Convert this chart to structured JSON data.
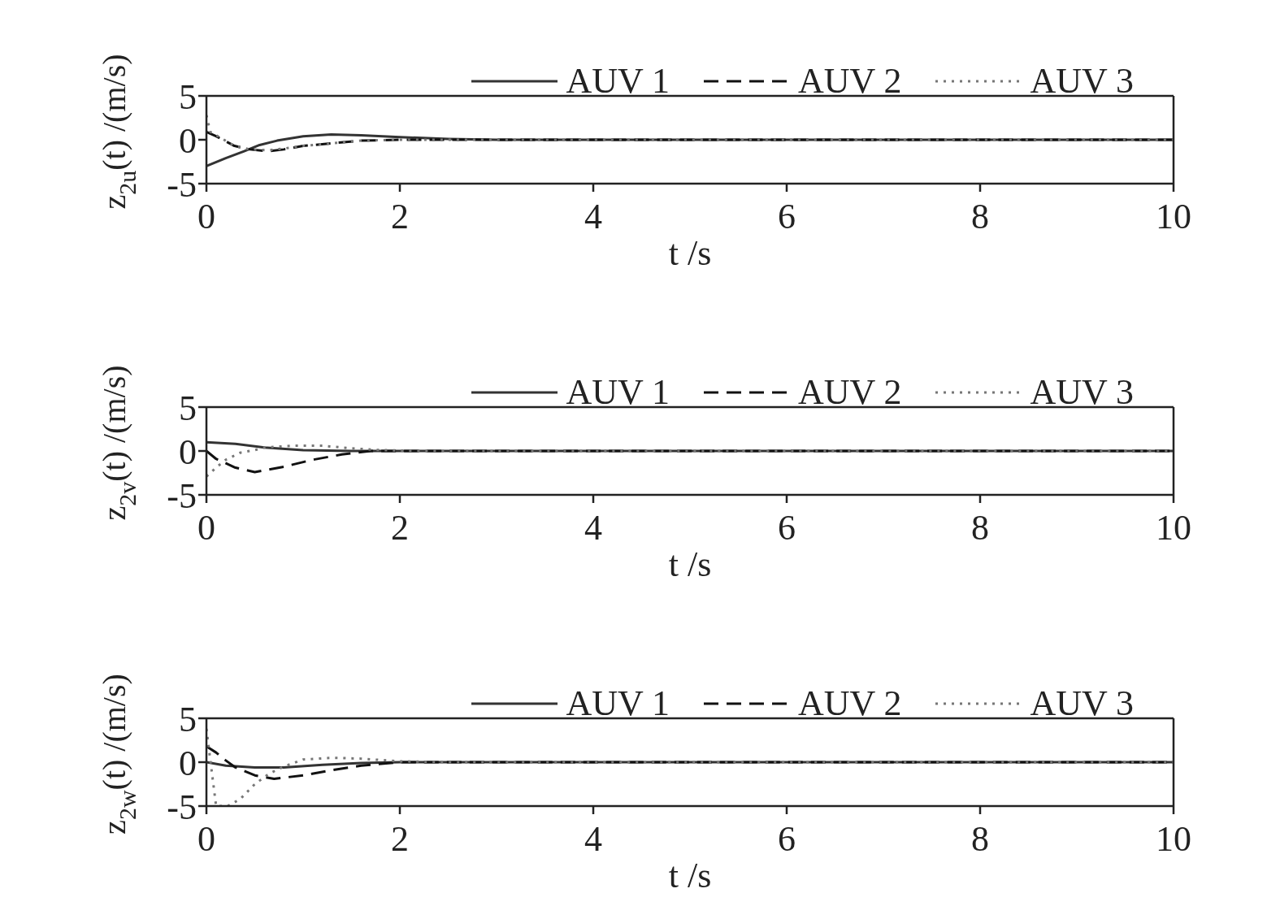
{
  "chart_data": [
    {
      "type": "line",
      "xlabel": "t /s",
      "ylabel": "z$_{2u}$(t) /(m/s)",
      "xlim": [
        0,
        10
      ],
      "xticks": [
        0,
        2,
        4,
        6,
        8,
        10
      ],
      "ylim": [
        -5,
        5
      ],
      "yticks": [
        -5,
        0,
        5
      ],
      "legend": "top right",
      "grid": false,
      "series": [
        {
          "name": "AUV 1",
          "color": "#333333",
          "line_style": "solid",
          "x": [
            0,
            0.2,
            0.39,
            0.55,
            0.73,
            1.0,
            1.29,
            1.6,
            2.0,
            2.5,
            3,
            10
          ],
          "values": [
            -3.0,
            -2.1,
            -1.3,
            -0.6,
            -0.1,
            0.4,
            0.6,
            0.5,
            0.3,
            0.1,
            0,
            0
          ]
        },
        {
          "name": "AUV 2",
          "color": "#111111",
          "line_style": "dashed",
          "x": [
            0,
            0.1,
            0.29,
            0.45,
            0.64,
            0.8,
            1.0,
            1.3,
            1.6,
            2.0,
            2.5,
            10
          ],
          "values": [
            0.9,
            0.4,
            -0.7,
            -1.1,
            -1.3,
            -1.1,
            -0.7,
            -0.4,
            -0.1,
            0,
            0,
            0
          ]
        },
        {
          "name": "AUV 3",
          "color": "#777777",
          "line_style": "dotted",
          "x": [
            0,
            0.04,
            0.29,
            0.45,
            0.64,
            0.8,
            1.0,
            1.3,
            1.6,
            2.0,
            2.5,
            10
          ],
          "values": [
            2.8,
            0.9,
            -0.7,
            -1.1,
            -1.2,
            -1.0,
            -0.7,
            -0.4,
            -0.1,
            0,
            0,
            0
          ]
        }
      ]
    },
    {
      "type": "line",
      "xlabel": "t /s",
      "ylabel": "z$_{2v}$(t) /(m/s)",
      "xlim": [
        0,
        10
      ],
      "xticks": [
        0,
        2,
        4,
        6,
        8,
        10
      ],
      "ylim": [
        -5,
        5
      ],
      "yticks": [
        -5,
        0,
        5
      ],
      "legend": "top right",
      "grid": false,
      "series": [
        {
          "name": "AUV 1",
          "color": "#333333",
          "line_style": "solid",
          "x": [
            0,
            0.3,
            0.6,
            1.0,
            1.5,
            2.0,
            10
          ],
          "values": [
            1.0,
            0.8,
            0.4,
            0.1,
            0,
            0,
            0
          ]
        },
        {
          "name": "AUV 2",
          "color": "#111111",
          "line_style": "dashed",
          "x": [
            0,
            0.1,
            0.3,
            0.5,
            0.8,
            1.1,
            1.4,
            1.7,
            2.2,
            10
          ],
          "values": [
            0,
            -0.9,
            -1.9,
            -2.4,
            -1.8,
            -1.0,
            -0.4,
            0,
            0,
            0
          ]
        },
        {
          "name": "AUV 3",
          "color": "#777777",
          "line_style": "dotted",
          "x": [
            0,
            0.1,
            0.2,
            0.35,
            0.5,
            0.6,
            0.9,
            1.2,
            1.5,
            1.8,
            2.2,
            10
          ],
          "values": [
            -2.9,
            -1.9,
            -1.0,
            -0.2,
            0.1,
            0.4,
            0.6,
            0.6,
            0.3,
            0.1,
            0,
            0
          ]
        }
      ]
    },
    {
      "type": "line",
      "xlabel": "t /s",
      "ylabel": "z$_{2w}$(t) /(m/s)",
      "xlim": [
        0,
        10
      ],
      "xticks": [
        0,
        2,
        4,
        6,
        8,
        10
      ],
      "ylim": [
        -5,
        5
      ],
      "yticks": [
        -5,
        0,
        5
      ],
      "legend": "top right",
      "grid": false,
      "series": [
        {
          "name": "AUV 1",
          "color": "#333333",
          "line_style": "solid",
          "x": [
            0,
            0.2,
            0.5,
            0.8,
            1.2,
            1.6,
            2.0,
            10
          ],
          "values": [
            0,
            -0.4,
            -0.6,
            -0.6,
            -0.3,
            -0.1,
            0,
            0
          ]
        },
        {
          "name": "AUV 2",
          "color": "#111111",
          "line_style": "dashed",
          "x": [
            0,
            0.1,
            0.2,
            0.3,
            0.5,
            0.7,
            1.0,
            1.3,
            1.6,
            2.0,
            10
          ],
          "values": [
            1.8,
            1.1,
            0.2,
            -0.6,
            -1.5,
            -1.9,
            -1.5,
            -0.9,
            -0.4,
            0,
            0
          ]
        },
        {
          "name": "AUV 3",
          "color": "#777777",
          "line_style": "dotted",
          "x": [
            0,
            0.1,
            0.22,
            0.35,
            0.5,
            0.65,
            0.8,
            1.0,
            1.3,
            1.6,
            2.0,
            2.5,
            10
          ],
          "values": [
            3.8,
            -5,
            -5,
            -4.2,
            -2.5,
            -1.3,
            -0.5,
            0.3,
            0.5,
            0.4,
            0.1,
            0,
            0
          ]
        }
      ]
    }
  ]
}
